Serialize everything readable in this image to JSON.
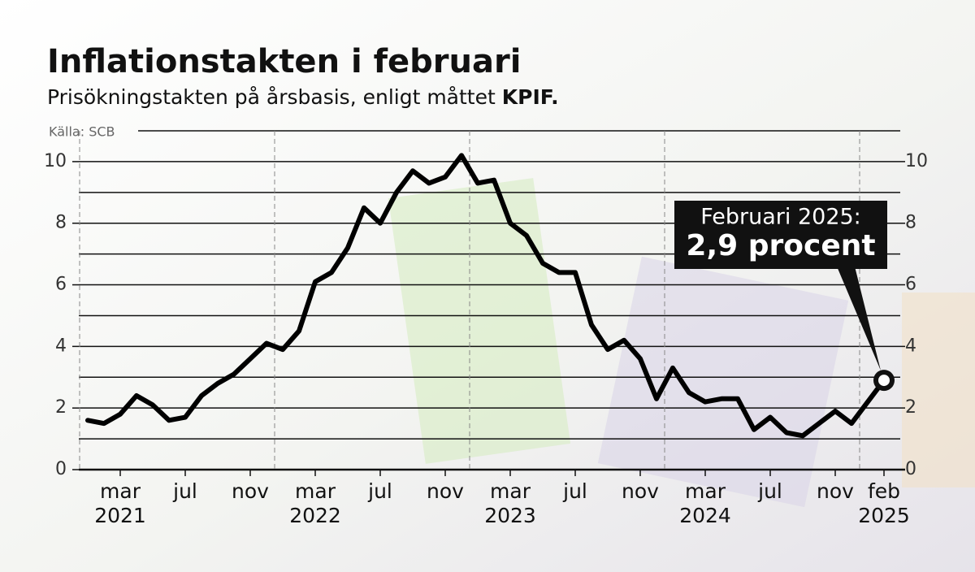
{
  "chart_data": {
    "type": "line",
    "title": "Inflationstakten i februari",
    "subtitle": {
      "text": "Prisökningstakten på årsbasis, enligt måttet",
      "emphasis": "KPIF."
    },
    "source": "Källa: SCB",
    "x": [
      "2021-01",
      "2021-02",
      "2021-03",
      "2021-04",
      "2021-05",
      "2021-06",
      "2021-07",
      "2021-08",
      "2021-09",
      "2021-10",
      "2021-11",
      "2021-12",
      "2022-01",
      "2022-02",
      "2022-03",
      "2022-04",
      "2022-05",
      "2022-06",
      "2022-07",
      "2022-08",
      "2022-09",
      "2022-10",
      "2022-11",
      "2022-12",
      "2023-01",
      "2023-02",
      "2023-03",
      "2023-04",
      "2023-05",
      "2023-06",
      "2023-07",
      "2023-08",
      "2023-09",
      "2023-10",
      "2023-11",
      "2023-12",
      "2024-01",
      "2024-02",
      "2024-03",
      "2024-04",
      "2024-05",
      "2024-06",
      "2024-07",
      "2024-08",
      "2024-09",
      "2024-10",
      "2024-11",
      "2024-12",
      "2025-01",
      "2025-02"
    ],
    "series": [
      {
        "name": "KPIF",
        "color": "#000000",
        "values": [
          1.6,
          1.5,
          1.8,
          2.4,
          2.1,
          1.6,
          1.7,
          2.4,
          2.8,
          3.1,
          3.6,
          4.1,
          3.9,
          4.5,
          6.1,
          6.4,
          7.2,
          8.5,
          8.0,
          9.0,
          9.7,
          9.3,
          9.5,
          10.2,
          9.3,
          9.4,
          8.0,
          7.6,
          6.7,
          6.4,
          6.4,
          4.7,
          3.9,
          4.2,
          3.6,
          2.3,
          3.3,
          2.5,
          2.2,
          2.3,
          2.3,
          1.3,
          1.7,
          1.2,
          1.1,
          1.5,
          1.9,
          1.5,
          2.2,
          2.9
        ]
      }
    ],
    "xticks": [
      {
        "value": "2021-03",
        "label": "mar"
      },
      {
        "value": "2021-07",
        "label": "jul"
      },
      {
        "value": "2021-11",
        "label": "nov"
      },
      {
        "value": "2022-03",
        "label": "mar"
      },
      {
        "value": "2022-07",
        "label": "jul"
      },
      {
        "value": "2022-11",
        "label": "nov"
      },
      {
        "value": "2023-03",
        "label": "mar"
      },
      {
        "value": "2023-07",
        "label": "jul"
      },
      {
        "value": "2023-11",
        "label": "nov"
      },
      {
        "value": "2024-03",
        "label": "mar"
      },
      {
        "value": "2024-07",
        "label": "jul"
      },
      {
        "value": "2024-11",
        "label": "nov"
      },
      {
        "value": "2025-02",
        "label": "feb"
      }
    ],
    "year_labels": [
      {
        "value": "2021-03",
        "label": "2021"
      },
      {
        "value": "2022-03",
        "label": "2022"
      },
      {
        "value": "2023-03",
        "label": "2023"
      },
      {
        "value": "2024-03",
        "label": "2024"
      },
      {
        "value": "2025-02",
        "label": "2025"
      }
    ],
    "year_dividers": [
      "2021-01",
      "2022-01",
      "2023-01",
      "2024-01",
      "2025-01"
    ],
    "ylim": [
      0,
      11
    ],
    "yticks": [
      0,
      2,
      4,
      6,
      8,
      10
    ],
    "minor_grid": [
      1,
      3,
      5,
      7,
      9,
      11
    ],
    "grid": true,
    "annotation": {
      "title": "Februari 2025:",
      "text": "2,9 procent"
    }
  }
}
